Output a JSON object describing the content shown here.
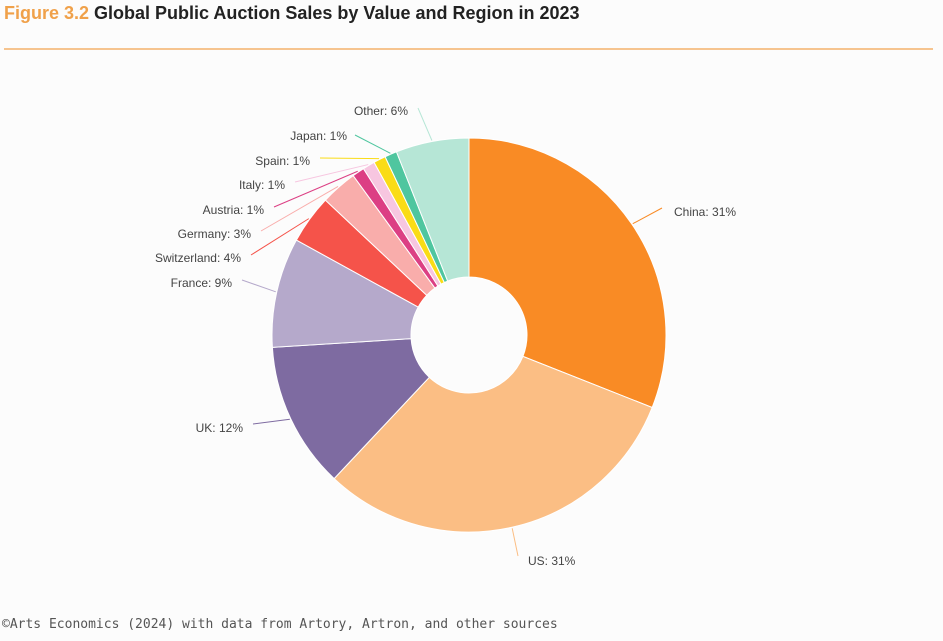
{
  "header": {
    "figure_number": "Figure 3.2",
    "title": "Global Public Auction Sales by Value and Region in 2023"
  },
  "source": "©Arts Economics (2024) with data from Artory, Artron, and other sources",
  "chart_data": {
    "type": "pie",
    "title": "Global Public Auction Sales by Value and Region in 2023",
    "unit": "%",
    "donut": true,
    "slices": [
      {
        "label": "China: 31%",
        "name": "China",
        "value": 31,
        "color": "#f98b25"
      },
      {
        "label": "US: 31%",
        "name": "US",
        "value": 31,
        "color": "#fbbe84"
      },
      {
        "label": "UK: 12%",
        "name": "UK",
        "value": 12,
        "color": "#7e6ba1"
      },
      {
        "label": "France: 9%",
        "name": "France",
        "value": 9,
        "color": "#b5a9cb"
      },
      {
        "label": "Switzerland: 4%",
        "name": "Switzerland",
        "value": 4,
        "color": "#f5534a"
      },
      {
        "label": "Germany: 3%",
        "name": "Germany",
        "value": 3,
        "color": "#f9adab"
      },
      {
        "label": "Austria: 1%",
        "name": "Austria",
        "value": 1,
        "color": "#dc3f84"
      },
      {
        "label": "Italy: 1%",
        "name": "Italy",
        "value": 1,
        "color": "#f7c6e0"
      },
      {
        "label": "Spain: 1%",
        "name": "Spain",
        "value": 1,
        "color": "#fadc16"
      },
      {
        "label": "Japan: 1%",
        "name": "Japan",
        "value": 1,
        "color": "#4fc69f"
      },
      {
        "label": "Other: 6%",
        "name": "Other",
        "value": 6,
        "color": "#b6e6d6"
      }
    ]
  }
}
